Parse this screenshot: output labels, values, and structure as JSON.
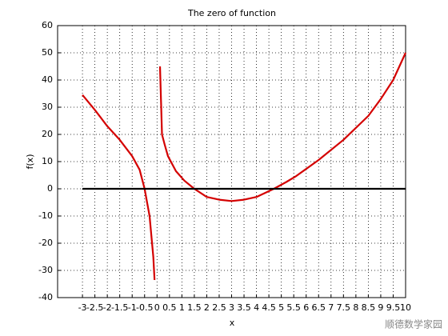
{
  "chart_data": {
    "type": "line",
    "title": "The zero of function",
    "x_label": "x",
    "y_label": "f(x)",
    "series": [
      {
        "color": "#d40000",
        "x": [
          -3,
          -2.5,
          -2,
          -1.5,
          -1,
          -0.7,
          -0.5,
          -0.3,
          -0.15,
          -0.1,
          null,
          0.12,
          0.2,
          0.3,
          0.44,
          0.76,
          1.1,
          1.5,
          2,
          2.5,
          3,
          3.5,
          4,
          4.7,
          5.2,
          5.6,
          6.5,
          7.5,
          8.5,
          9,
          9.5,
          10
        ],
        "values": [
          34.5,
          29,
          23,
          18,
          12,
          7,
          0,
          -10,
          -25,
          -33.5,
          null,
          45,
          20,
          16.5,
          12,
          6.5,
          3,
          0,
          -3,
          -4,
          -4.5,
          -4,
          -3,
          0,
          2.5,
          4.7,
          10.6,
          18,
          26.8,
          33,
          40,
          50
        ]
      },
      {
        "color": "#000000",
        "x": [
          -3,
          10
        ],
        "values": [
          0,
          0
        ]
      }
    ],
    "xlim": [
      -4,
      10
    ],
    "ylim": [
      -40,
      60
    ],
    "xticks": [
      -3,
      -2.5,
      -2,
      -1.5,
      -1,
      -0.5,
      0,
      0.5,
      1,
      1.5,
      2,
      2.5,
      3,
      3.5,
      4,
      4.5,
      5,
      5.5,
      6,
      6.5,
      7,
      7.5,
      8,
      8.5,
      9,
      9.5,
      10
    ],
    "yticks": [
      -40,
      -30,
      -20,
      -10,
      0,
      10,
      20,
      30,
      40,
      50,
      60
    ],
    "grid": true
  },
  "watermark": "顺德数学家园"
}
